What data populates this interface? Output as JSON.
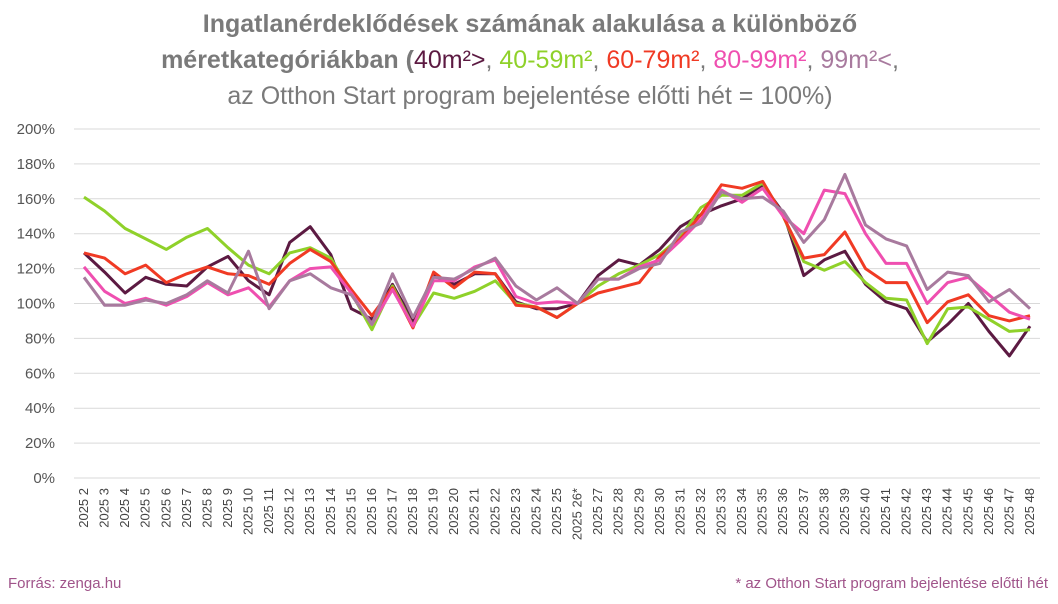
{
  "chart_data": {
    "type": "line",
    "title": {
      "line1": "Ingatlanérdeklődések számának alakulása a különböző",
      "line2": "méretkategóriákban (",
      "separator": ",",
      "line3": "az Otthon Start program bejelentése előtti hét = 100%)"
    },
    "source": "Forrás: zenga.hu",
    "footnote": "* az Otthon Start program bejelentése előtti hét",
    "categories": [
      "2025 2",
      "2025 3",
      "2025 4",
      "2025 5",
      "2025 6",
      "2025 7",
      "2025 8",
      "2025 9",
      "2025 10",
      "2025 11",
      "2025 12",
      "2025 13",
      "2025 14",
      "2025 15",
      "2025 16",
      "2025 17",
      "2025 18",
      "2025 19",
      "2025 20",
      "2025 21",
      "2025 22",
      "2025 23",
      "2025 24",
      "2025 25",
      "2025 26*",
      "2025 27",
      "2025 28",
      "2025 29",
      "2025 30",
      "2025 31",
      "2025 32",
      "2025 33",
      "2025 34",
      "2025 35",
      "2025 36",
      "2025 37",
      "2025 38",
      "2025 39",
      "2025 40",
      "2025 41",
      "2025 42",
      "2025 43",
      "2025 44",
      "2025 45",
      "2025 46",
      "2025 47",
      "2025 48"
    ],
    "series": [
      {
        "name": "40m²>",
        "color": "#5c1a42",
        "values": [
          129,
          118,
          106,
          115,
          111,
          110,
          121,
          127,
          113,
          105,
          135,
          144,
          128,
          97,
          91,
          111,
          90,
          116,
          111,
          117,
          117,
          101,
          97,
          97,
          100,
          116,
          125,
          122,
          131,
          144,
          151,
          156,
          160,
          168,
          152,
          116,
          125,
          130,
          111,
          101,
          97,
          78,
          88,
          100,
          84,
          70,
          87
        ]
      },
      {
        "name": "40-59m²",
        "color": "#8fd12a",
        "values": [
          161,
          153,
          143,
          137,
          131,
          138,
          143,
          132,
          122,
          117,
          129,
          132,
          126,
          106,
          85,
          110,
          87,
          106,
          103,
          107,
          113,
          100,
          98,
          92,
          100,
          110,
          117,
          122,
          128,
          138,
          155,
          162,
          162,
          169,
          150,
          124,
          119,
          124,
          112,
          103,
          102,
          77,
          97,
          98,
          91,
          84,
          85
        ]
      },
      {
        "name": "60-79m²",
        "color": "#f03a24",
        "values": [
          129,
          126,
          117,
          122,
          112,
          117,
          121,
          117,
          116,
          111,
          123,
          131,
          124,
          108,
          93,
          109,
          86,
          118,
          109,
          118,
          117,
          99,
          98,
          92,
          100,
          106,
          109,
          112,
          127,
          137,
          151,
          168,
          166,
          170,
          150,
          126,
          128,
          141,
          120,
          112,
          112,
          89,
          101,
          105,
          93,
          90,
          93
        ]
      },
      {
        "name": "80-99m²",
        "color": "#ef4fb0",
        "values": [
          121,
          107,
          100,
          103,
          99,
          104,
          112,
          105,
          109,
          98,
          113,
          120,
          121,
          106,
          88,
          108,
          87,
          113,
          113,
          121,
          125,
          104,
          100,
          101,
          100,
          114,
          114,
          121,
          125,
          136,
          148,
          165,
          158,
          166,
          150,
          140,
          165,
          163,
          140,
          123,
          123,
          100,
          112,
          115,
          105,
          95,
          91
        ]
      },
      {
        "name": "99m²<",
        "color": "#a87a9e",
        "values": [
          115,
          99,
          99,
          102,
          100,
          105,
          113,
          106,
          130,
          97,
          113,
          117,
          109,
          105,
          88,
          117,
          92,
          115,
          114,
          120,
          126,
          110,
          102,
          109,
          100,
          114,
          114,
          120,
          123,
          141,
          146,
          164,
          160,
          161,
          153,
          135,
          148,
          174,
          145,
          137,
          133,
          108,
          118,
          116,
          101,
          108,
          97
        ]
      }
    ],
    "ylim": [
      0,
      200
    ],
    "yticks": [
      {
        "value": 0,
        "label": "0%"
      },
      {
        "value": 20,
        "label": "20%"
      },
      {
        "value": 40,
        "label": "40%"
      },
      {
        "value": 60,
        "label": "60%"
      },
      {
        "value": 80,
        "label": "80%"
      },
      {
        "value": 100,
        "label": "100%"
      },
      {
        "value": 120,
        "label": "120%"
      },
      {
        "value": 140,
        "label": "140%"
      },
      {
        "value": 160,
        "label": "160%"
      },
      {
        "value": 180,
        "label": "180%"
      },
      {
        "value": 200,
        "label": "200%"
      }
    ],
    "grid": true
  }
}
